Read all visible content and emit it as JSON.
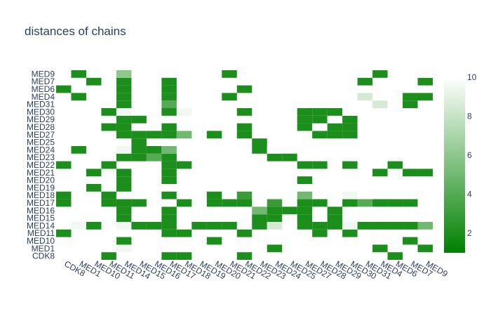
{
  "chart_data": {
    "type": "heatmap",
    "title": "distances of chains",
    "x_labels": [
      "CDK8",
      "MED1",
      "MED10",
      "MED11",
      "MED14",
      "MED15",
      "MED16",
      "MED17",
      "MED18",
      "MED19",
      "MED20",
      "MED21",
      "MED22",
      "MED23",
      "MED24",
      "MED25",
      "MED27",
      "MED28",
      "MED29",
      "MED30",
      "MED31",
      "MED4",
      "MED6",
      "MED7",
      "MED9"
    ],
    "y_labels": [
      "CDK8",
      "MED1",
      "MED10",
      "MED11",
      "MED14",
      "MED15",
      "MED16",
      "MED17",
      "MED18",
      "MED19",
      "MED20",
      "MED21",
      "MED22",
      "MED23",
      "MED24",
      "MED25",
      "MED27",
      "MED28",
      "MED29",
      "MED30",
      "MED31",
      "MED4",
      "MED6",
      "MED7",
      "MED9"
    ],
    "value_range": [
      1,
      10
    ],
    "colorbar": {
      "ticks": [
        2,
        4,
        6,
        8,
        10
      ]
    },
    "colorscale": [
      [
        "#008000",
        0
      ],
      [
        "#ffffff",
        1
      ]
    ],
    "empty_color": "#ffffff",
    "z": [
      [
        10,
        null,
        null,
        2,
        null,
        null,
        null,
        2,
        2,
        null,
        null,
        null,
        2,
        null,
        null,
        null,
        null,
        null,
        null,
        null,
        null,
        null,
        2,
        null,
        null
      ],
      [
        null,
        10,
        null,
        null,
        9.5,
        null,
        null,
        null,
        null,
        null,
        null,
        null,
        null,
        null,
        2,
        null,
        null,
        null,
        null,
        null,
        null,
        2,
        null,
        null,
        2
      ],
      [
        null,
        null,
        10,
        null,
        2,
        null,
        null,
        null,
        null,
        null,
        2,
        null,
        null,
        null,
        null,
        null,
        null,
        null,
        null,
        null,
        null,
        null,
        null,
        2,
        null
      ],
      [
        2,
        null,
        null,
        10,
        null,
        null,
        null,
        2,
        2,
        null,
        null,
        null,
        2,
        null,
        null,
        null,
        null,
        2,
        null,
        2,
        null,
        null,
        null,
        null,
        null
      ],
      [
        null,
        9.5,
        2,
        null,
        9.5,
        2,
        2,
        2,
        null,
        2,
        2,
        2,
        null,
        2,
        8.5,
        null,
        2,
        2,
        2,
        9.5,
        2,
        2,
        2,
        2,
        5
      ],
      [
        null,
        null,
        null,
        null,
        2,
        10,
        null,
        2,
        null,
        null,
        null,
        null,
        null,
        2,
        2,
        null,
        2,
        null,
        2,
        null,
        null,
        null,
        null,
        null,
        null
      ],
      [
        null,
        null,
        null,
        null,
        2,
        null,
        10,
        2,
        null,
        null,
        null,
        null,
        null,
        5,
        2,
        2,
        2,
        null,
        2,
        null,
        null,
        null,
        null,
        null,
        null
      ],
      [
        2,
        null,
        null,
        2,
        2,
        2,
        null,
        10,
        2,
        null,
        2,
        2,
        2,
        null,
        3,
        null,
        2,
        2,
        null,
        2,
        4,
        2,
        2,
        2,
        null
      ],
      [
        2,
        null,
        null,
        2,
        null,
        null,
        null,
        2,
        10,
        null,
        2,
        null,
        3,
        null,
        null,
        null,
        5,
        null,
        null,
        9.5,
        null,
        null,
        null,
        null,
        null
      ],
      [
        null,
        null,
        2,
        null,
        2,
        null,
        null,
        null,
        null,
        10,
        null,
        null,
        null,
        null,
        null,
        null,
        null,
        null,
        null,
        null,
        null,
        null,
        null,
        null,
        null
      ],
      [
        null,
        null,
        null,
        null,
        2,
        null,
        null,
        2,
        null,
        null,
        10,
        null,
        null,
        null,
        null,
        null,
        2,
        null,
        null,
        null,
        null,
        null,
        null,
        null,
        null
      ],
      [
        null,
        null,
        2,
        null,
        2,
        null,
        null,
        2,
        null,
        null,
        null,
        10,
        null,
        null,
        null,
        null,
        null,
        null,
        null,
        null,
        null,
        2,
        null,
        2,
        2
      ],
      [
        2,
        null,
        null,
        2,
        null,
        null,
        null,
        2,
        2,
        null,
        null,
        null,
        10,
        null,
        null,
        null,
        2,
        2,
        null,
        2,
        null,
        null,
        2,
        null,
        null
      ],
      [
        null,
        null,
        null,
        null,
        2,
        2,
        4,
        2,
        null,
        null,
        null,
        null,
        null,
        10,
        2,
        2,
        null,
        null,
        null,
        null,
        null,
        null,
        null,
        null,
        null
      ],
      [
        null,
        2,
        null,
        null,
        9.5,
        2,
        2,
        5,
        null,
        null,
        null,
        null,
        null,
        2,
        10,
        null,
        null,
        null,
        null,
        null,
        null,
        null,
        null,
        null,
        null
      ],
      [
        null,
        null,
        null,
        null,
        null,
        2,
        null,
        null,
        null,
        null,
        null,
        null,
        null,
        2,
        null,
        10,
        null,
        null,
        null,
        null,
        null,
        null,
        null,
        null,
        null
      ],
      [
        null,
        null,
        null,
        null,
        2,
        2,
        2,
        2,
        5,
        null,
        2,
        null,
        2,
        null,
        null,
        null,
        10,
        2,
        2,
        2,
        null,
        null,
        null,
        null,
        null
      ],
      [
        null,
        null,
        null,
        2,
        2,
        null,
        null,
        2,
        null,
        null,
        null,
        null,
        2,
        null,
        null,
        null,
        2,
        10,
        2,
        2,
        null,
        null,
        null,
        null,
        null
      ],
      [
        null,
        null,
        null,
        null,
        2,
        2,
        null,
        null,
        null,
        null,
        null,
        null,
        null,
        null,
        null,
        null,
        2,
        2,
        10,
        2,
        null,
        null,
        null,
        null,
        null
      ],
      [
        null,
        null,
        null,
        2,
        9.5,
        null,
        null,
        2,
        9.5,
        null,
        null,
        null,
        2,
        null,
        null,
        null,
        2,
        2,
        2,
        10,
        null,
        null,
        null,
        null,
        null
      ],
      [
        null,
        null,
        null,
        null,
        2,
        null,
        null,
        4,
        null,
        null,
        null,
        null,
        null,
        null,
        null,
        null,
        null,
        null,
        null,
        null,
        10,
        8.5,
        null,
        2,
        null
      ],
      [
        null,
        2,
        null,
        null,
        2,
        null,
        null,
        2,
        null,
        null,
        null,
        2,
        null,
        null,
        null,
        null,
        null,
        null,
        null,
        null,
        8.5,
        10,
        null,
        2,
        2
      ],
      [
        2,
        null,
        null,
        null,
        2,
        null,
        null,
        2,
        null,
        null,
        null,
        null,
        2,
        null,
        null,
        null,
        null,
        null,
        null,
        null,
        null,
        null,
        10,
        null,
        null
      ],
      [
        null,
        null,
        2,
        null,
        2,
        null,
        null,
        2,
        null,
        null,
        null,
        null,
        null,
        null,
        null,
        null,
        null,
        null,
        null,
        null,
        2,
        null,
        null,
        10,
        2
      ],
      [
        null,
        2,
        null,
        null,
        6,
        null,
        null,
        null,
        null,
        null,
        null,
        2,
        null,
        null,
        null,
        null,
        null,
        null,
        null,
        null,
        null,
        2,
        null,
        null,
        10
      ]
    ]
  }
}
